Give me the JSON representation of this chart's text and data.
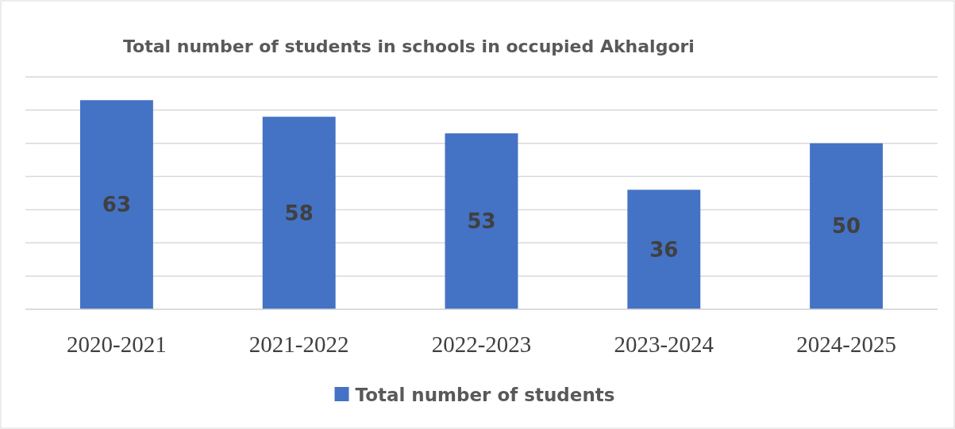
{
  "chart_data": {
    "type": "bar",
    "title": "Total number of students in schools in occupied Akhalgori",
    "categories": [
      "2020-2021",
      "2021-2022",
      "2022-2023",
      "2023-2024",
      "2024-2025"
    ],
    "series": [
      {
        "name": "Total number of students",
        "color": "#4472c4",
        "values": [
          63,
          58,
          53,
          36,
          50
        ]
      }
    ],
    "ylim": [
      0,
      70
    ],
    "yticks": [
      {
        "value": 0,
        "label": null
      },
      {
        "value": 10,
        "label": null
      },
      {
        "value": 20,
        "label": null
      },
      {
        "value": 30,
        "label": null
      },
      {
        "value": 40,
        "label": null
      },
      {
        "value": 50,
        "label": null
      },
      {
        "value": 60,
        "label": null
      },
      {
        "value": 70,
        "label": null
      }
    ],
    "tick_labels": "x",
    "grid": "y",
    "data_labels": true,
    "legend": "bottom"
  }
}
